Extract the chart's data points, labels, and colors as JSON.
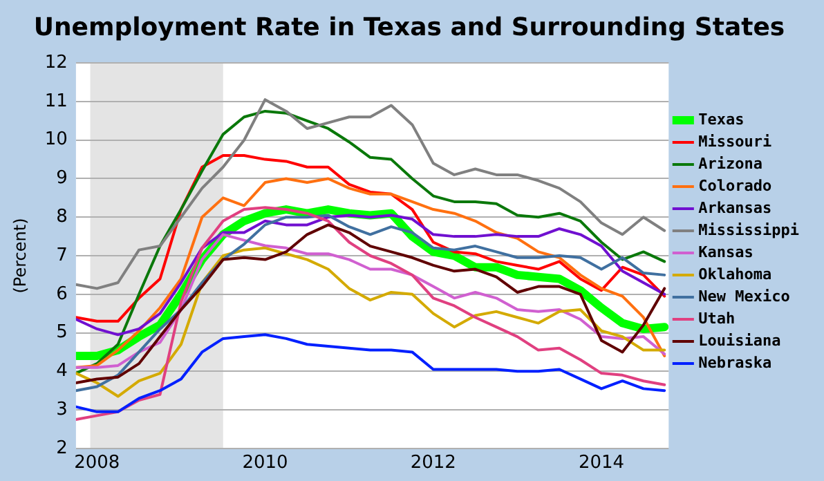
{
  "chart_data": {
    "type": "line",
    "title": "Unemployment Rate in Texas and Surrounding States",
    "ylabel": "(Percent)",
    "x": [
      2007.75,
      2008.0,
      2008.25,
      2008.5,
      2008.75,
      2009.0,
      2009.25,
      2009.5,
      2009.75,
      2010.0,
      2010.25,
      2010.5,
      2010.75,
      2011.0,
      2011.25,
      2011.5,
      2011.75,
      2012.0,
      2012.25,
      2012.5,
      2012.75,
      2013.0,
      2013.25,
      2013.5,
      2013.75,
      2014.0,
      2014.25,
      2014.5,
      2014.75
    ],
    "xlim": [
      2007.75,
      2014.8
    ],
    "xticks": [
      2008,
      2010,
      2012,
      2014
    ],
    "ylim": [
      2,
      12
    ],
    "yticks": [
      2,
      3,
      4,
      5,
      6,
      7,
      8,
      9,
      10,
      11,
      12
    ],
    "grid": "y",
    "legend": "right",
    "marker": "none",
    "line_style": "solid",
    "bands": [
      {
        "axis": "x",
        "from": 2007.92,
        "to": 2009.5,
        "color": "#e4e4e4"
      }
    ],
    "series": [
      {
        "name": "Texas",
        "color": "#00ff00",
        "values": [
          4.4,
          4.4,
          4.55,
          4.9,
          5.2,
          6.0,
          6.9,
          7.55,
          7.9,
          8.1,
          8.2,
          8.1,
          8.2,
          8.1,
          8.05,
          8.1,
          7.5,
          7.1,
          7.0,
          6.7,
          6.7,
          6.5,
          6.45,
          6.4,
          6.1,
          5.65,
          5.25,
          5.1,
          5.15
        ]
      },
      {
        "name": "Missouri",
        "color": "#ff0000",
        "values": [
          5.4,
          5.3,
          5.3,
          5.9,
          6.4,
          8.2,
          9.3,
          9.6,
          9.6,
          9.5,
          9.45,
          9.3,
          9.3,
          8.85,
          8.65,
          8.6,
          8.2,
          7.35,
          7.1,
          7.05,
          6.85,
          6.75,
          6.65,
          6.85,
          6.4,
          6.1,
          6.7,
          6.5,
          5.95
        ]
      },
      {
        "name": "Arizona",
        "color": "#0a780a",
        "values": [
          3.95,
          4.2,
          4.7,
          6.0,
          7.25,
          8.2,
          9.2,
          10.15,
          10.6,
          10.75,
          10.7,
          10.5,
          10.3,
          9.95,
          9.55,
          9.5,
          9.0,
          8.55,
          8.4,
          8.4,
          8.35,
          8.05,
          8.0,
          8.1,
          7.9,
          7.35,
          6.9,
          7.1,
          6.85
        ]
      },
      {
        "name": "Colorado",
        "color": "#ff7010",
        "values": [
          4.1,
          4.15,
          4.55,
          5.05,
          5.65,
          6.4,
          8.0,
          8.5,
          8.3,
          8.9,
          9.0,
          8.9,
          9.0,
          8.75,
          8.6,
          8.6,
          8.4,
          8.2,
          8.1,
          7.9,
          7.6,
          7.45,
          7.1,
          6.95,
          6.5,
          6.15,
          5.95,
          5.4,
          4.4
        ]
      },
      {
        "name": "Arkansas",
        "color": "#7010d0",
        "values": [
          5.35,
          5.1,
          4.95,
          5.1,
          5.5,
          6.3,
          7.2,
          7.6,
          7.6,
          7.9,
          7.8,
          7.8,
          8.0,
          8.05,
          8.0,
          8.05,
          7.95,
          7.55,
          7.5,
          7.5,
          7.55,
          7.5,
          7.5,
          7.7,
          7.55,
          7.25,
          6.6,
          6.3,
          6.0
        ]
      },
      {
        "name": "Mississippi",
        "color": "#808080",
        "values": [
          6.25,
          6.15,
          6.3,
          7.15,
          7.25,
          8.0,
          8.75,
          9.3,
          10.0,
          11.05,
          10.75,
          10.3,
          10.45,
          10.6,
          10.6,
          10.9,
          10.4,
          9.4,
          9.1,
          9.25,
          9.1,
          9.1,
          8.95,
          8.75,
          8.4,
          7.85,
          7.55,
          8.0,
          7.65
        ]
      },
      {
        "name": "Kansas",
        "color": "#d060d0",
        "values": [
          4.1,
          4.1,
          4.15,
          4.5,
          4.75,
          5.6,
          6.9,
          7.55,
          7.4,
          7.26,
          7.2,
          7.05,
          7.05,
          6.9,
          6.65,
          6.65,
          6.5,
          6.2,
          5.9,
          6.05,
          5.9,
          5.6,
          5.55,
          5.6,
          5.35,
          4.9,
          4.85,
          4.9,
          4.45
        ]
      },
      {
        "name": "Oklahoma",
        "color": "#d4aa00",
        "values": [
          3.95,
          3.7,
          3.35,
          3.75,
          3.95,
          4.7,
          6.3,
          7.0,
          7.15,
          7.2,
          7.05,
          6.9,
          6.65,
          6.15,
          5.85,
          6.05,
          6.0,
          5.5,
          5.15,
          5.45,
          5.55,
          5.4,
          5.25,
          5.55,
          5.6,
          5.05,
          4.9,
          4.55,
          4.55
        ]
      },
      {
        "name": "New Mexico",
        "color": "#4070a0",
        "values": [
          3.5,
          3.6,
          3.9,
          4.5,
          5.1,
          5.6,
          6.3,
          6.9,
          7.3,
          7.8,
          8.0,
          8.0,
          8.05,
          7.75,
          7.55,
          7.75,
          7.6,
          7.2,
          7.15,
          7.25,
          7.1,
          6.95,
          6.95,
          7.0,
          6.95,
          6.65,
          6.95,
          6.55,
          6.5
        ]
      },
      {
        "name": "Utah",
        "color": "#e04080",
        "values": [
          2.75,
          2.85,
          2.95,
          3.25,
          3.4,
          5.8,
          7.2,
          7.9,
          8.2,
          8.25,
          8.2,
          8.1,
          7.9,
          7.35,
          7.0,
          6.8,
          6.5,
          5.9,
          5.7,
          5.4,
          5.15,
          4.9,
          4.55,
          4.6,
          4.3,
          3.95,
          3.9,
          3.75,
          3.65
        ]
      },
      {
        "name": "Louisiana",
        "color": "#600000",
        "values": [
          3.7,
          3.8,
          3.85,
          4.2,
          4.9,
          5.6,
          6.2,
          6.9,
          6.95,
          6.9,
          7.1,
          7.55,
          7.8,
          7.6,
          7.25,
          7.1,
          6.95,
          6.75,
          6.6,
          6.65,
          6.45,
          6.05,
          6.2,
          6.2,
          6.0,
          4.8,
          4.5,
          5.2,
          6.15
        ]
      },
      {
        "name": "Nebraska",
        "color": "#0020ff",
        "values": [
          3.08,
          2.95,
          2.95,
          3.3,
          3.5,
          3.8,
          4.5,
          4.85,
          4.9,
          4.95,
          4.85,
          4.7,
          4.65,
          4.6,
          4.55,
          4.55,
          4.5,
          4.05,
          4.05,
          4.05,
          4.05,
          4.0,
          4.0,
          4.05,
          3.8,
          3.55,
          3.75,
          3.55,
          3.5
        ]
      }
    ]
  }
}
